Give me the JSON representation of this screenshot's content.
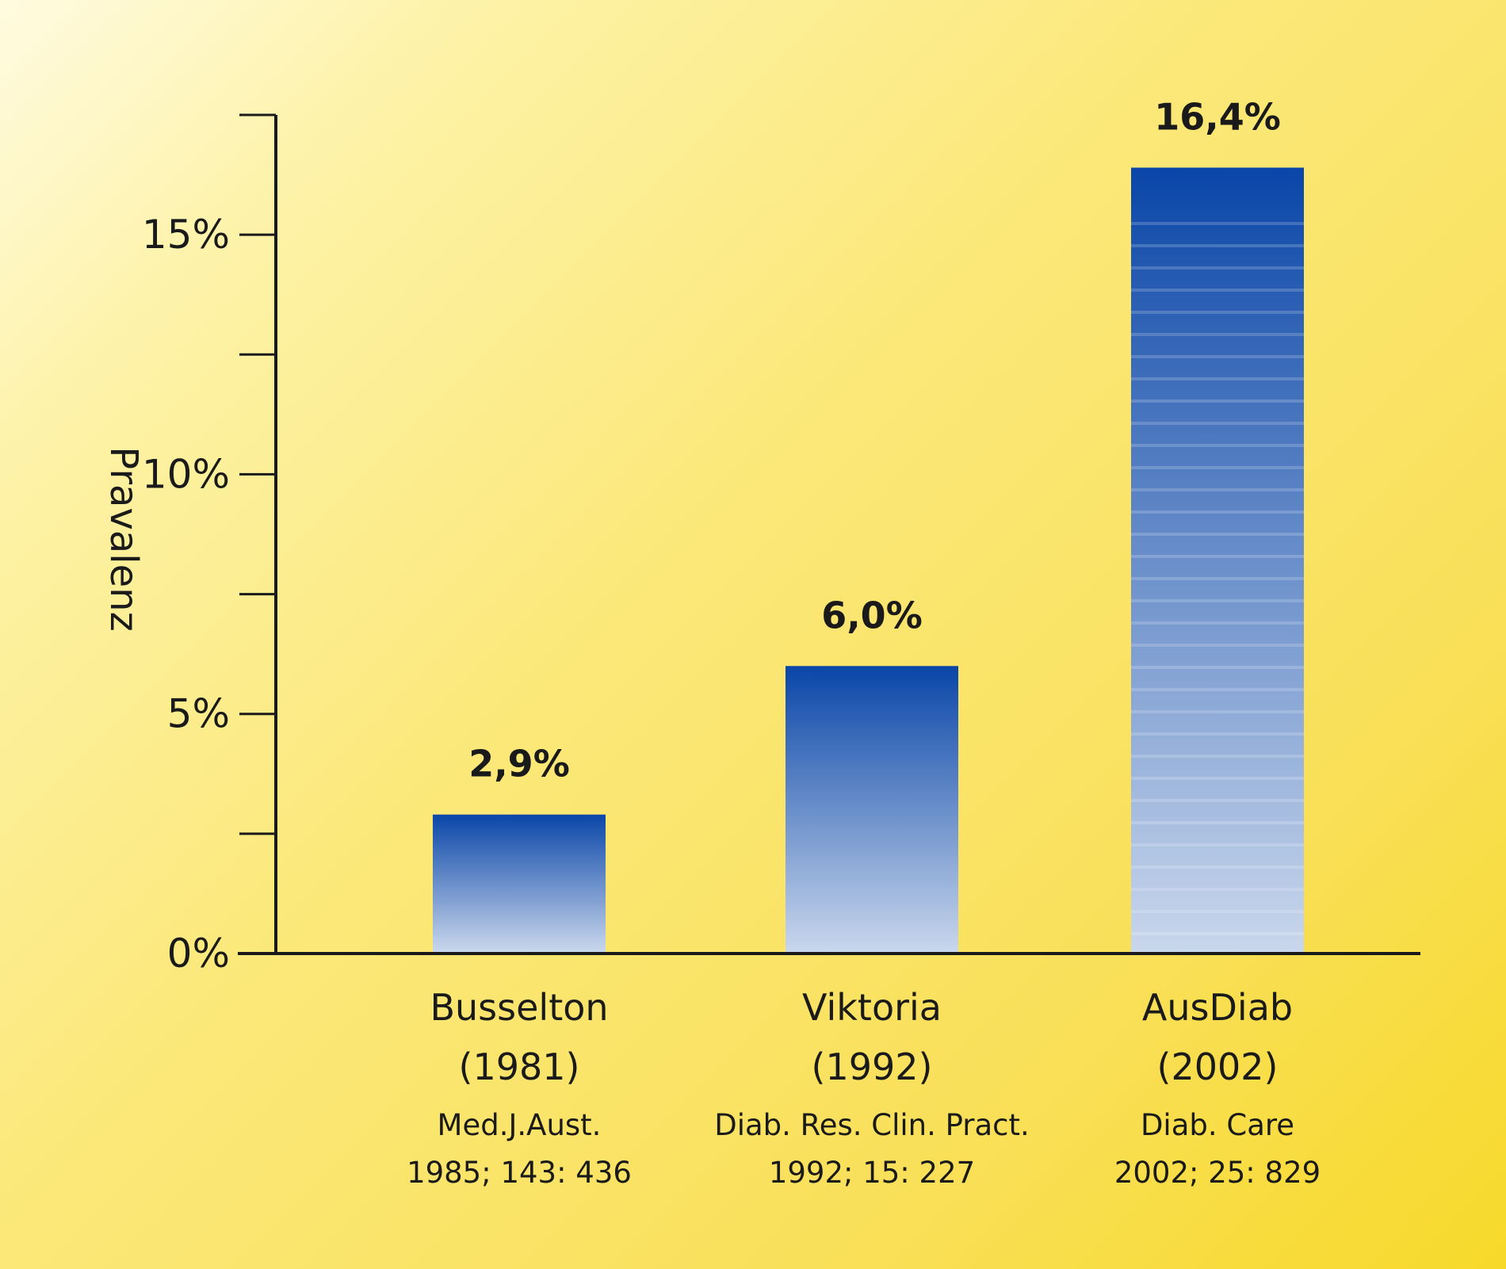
{
  "chart_data": {
    "type": "bar",
    "ylabel": "Pravalenz",
    "ylim": [
      0,
      17.5
    ],
    "grid": false,
    "yticks": [
      {
        "value": 0,
        "label": "0%"
      },
      {
        "value": 5,
        "label": "5%"
      },
      {
        "value": 10,
        "label": "10%"
      },
      {
        "value": 15,
        "label": "15%"
      }
    ],
    "minor_yticks": [
      2.5,
      7.5,
      12.5,
      17.5
    ],
    "categories": [
      {
        "name": "Busselton",
        "year": "(1981)",
        "ref1": "Med.J.Aust.",
        "ref2": "1985; 143: 436"
      },
      {
        "name": "Viktoria",
        "year": "(1992)",
        "ref1": "Diab. Res. Clin. Pract.",
        "ref2": "1992; 15: 227"
      },
      {
        "name": "AusDiab",
        "year": "(2002)",
        "ref1": "Diab. Care",
        "ref2": "2002; 25: 829"
      }
    ],
    "values": [
      2.9,
      6.0,
      16.4
    ],
    "value_labels": [
      "2,9%",
      "6,0%",
      "16,4%"
    ],
    "colors": {
      "bar_top": "#0a46a8",
      "bar_bottom": "#c9d7ec",
      "axis": "#1a1a1a"
    }
  }
}
